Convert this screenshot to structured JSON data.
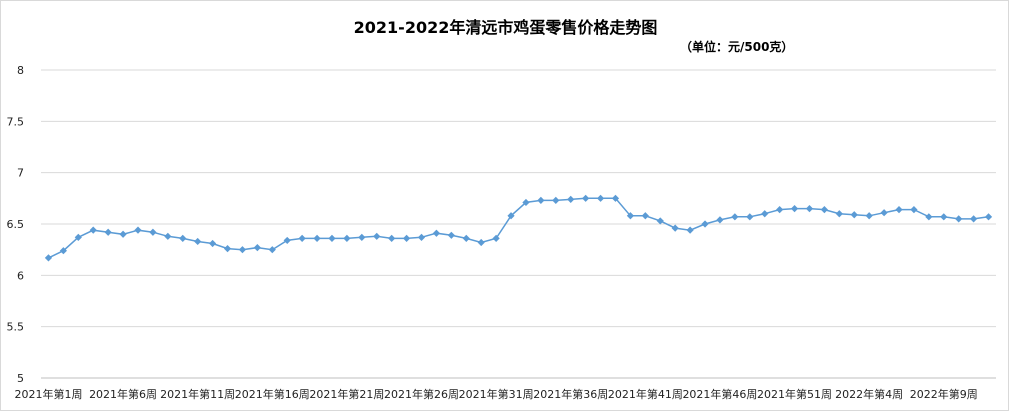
{
  "chart_data": {
    "type": "line",
    "title": "2021-2022年清远市鸡蛋零售价格走势图",
    "subtitle": "（单位：元/500克）",
    "xlabel": "",
    "ylabel": "",
    "ylim": [
      5,
      8
    ],
    "yticks": [
      "5",
      "5.5",
      "6",
      "6.5",
      "7",
      "7.5",
      "8"
    ],
    "grid": true,
    "legend": "none",
    "line_color": "#5b9bd5",
    "x_tick_labels": [
      "2021年第1周",
      "2021年第6周",
      "2021年第11周",
      "2021年第16周",
      "2021年第21周",
      "2021年第26周",
      "2021年第31周",
      "2021年第36周",
      "2021年第41周",
      "2021年第46周",
      "2021年第51周",
      "2022年第4周",
      "2022年第9周"
    ],
    "series": [
      {
        "values": [
          6.17,
          6.24,
          6.37,
          6.44,
          6.42,
          6.4,
          6.44,
          6.42,
          6.38,
          6.36,
          6.33,
          6.31,
          6.26,
          6.25,
          6.27,
          6.25,
          6.34,
          6.36,
          6.36,
          6.36,
          6.36,
          6.37,
          6.38,
          6.36,
          6.36,
          6.37,
          6.41,
          6.39,
          6.36,
          6.32,
          6.36,
          6.58,
          6.71,
          6.73,
          6.73,
          6.74,
          6.75,
          6.75,
          6.75,
          6.58,
          6.58,
          6.53,
          6.46,
          6.44,
          6.5,
          6.54,
          6.57,
          6.57,
          6.6,
          6.64,
          6.65,
          6.65,
          6.64,
          6.6,
          6.59,
          6.58,
          6.61,
          6.64,
          6.64,
          6.57,
          6.57,
          6.55,
          6.55,
          6.57
        ]
      }
    ]
  }
}
